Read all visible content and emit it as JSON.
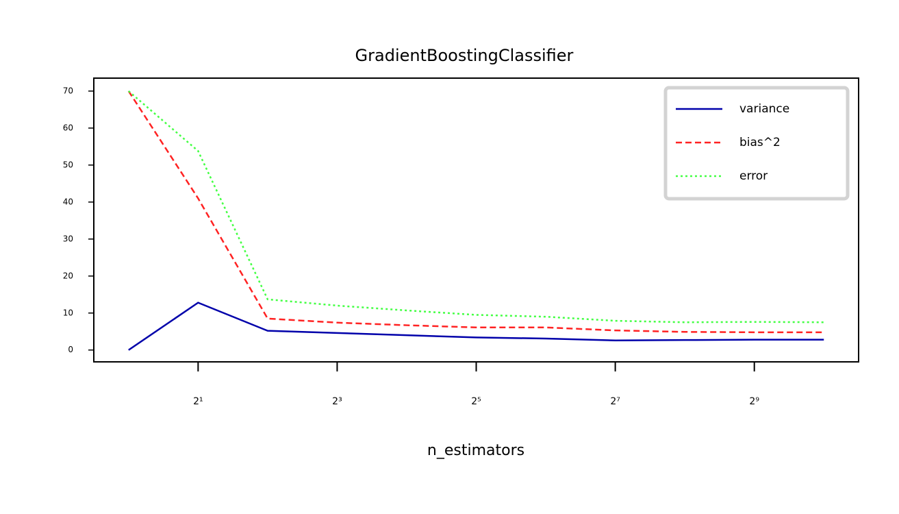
{
  "chart_data": {
    "type": "line",
    "title": "GradientBoostingClassifier",
    "xlabel": "n_estimators",
    "xscale": "log",
    "grid": false,
    "legend": "upper right",
    "x": [
      1,
      2,
      4,
      8,
      16,
      32,
      64,
      128,
      256,
      512,
      1024
    ],
    "xlim": [
      0.707,
      1448
    ],
    "xticks": [
      {
        "value": 2,
        "label": "2¹"
      },
      {
        "value": 8,
        "label": "2³"
      },
      {
        "value": 32,
        "label": "2⁵"
      },
      {
        "value": 128,
        "label": "2⁷"
      },
      {
        "value": 512,
        "label": "2⁹"
      }
    ],
    "ylim": [
      -3.2,
      73.5
    ],
    "yticks": [
      0,
      10,
      20,
      30,
      40,
      50,
      60,
      70
    ],
    "series": [
      {
        "name": "variance",
        "color": "#0000aa",
        "linestyle": "solid",
        "values": [
          0,
          12.8,
          5.2,
          4.6,
          4.0,
          3.4,
          3.1,
          2.6,
          2.7,
          2.8,
          2.8
        ]
      },
      {
        "name": "bias^2",
        "color": "#ff2222",
        "linestyle": "dashed",
        "values": [
          70,
          41,
          8.5,
          7.4,
          6.7,
          6.1,
          6.1,
          5.3,
          4.9,
          4.8,
          4.8
        ]
      },
      {
        "name": "error",
        "color": "#44ff44",
        "linestyle": "dotted",
        "values": [
          70,
          53.8,
          13.7,
          12.0,
          10.7,
          9.5,
          9.0,
          7.9,
          7.5,
          7.6,
          7.5
        ]
      }
    ]
  }
}
